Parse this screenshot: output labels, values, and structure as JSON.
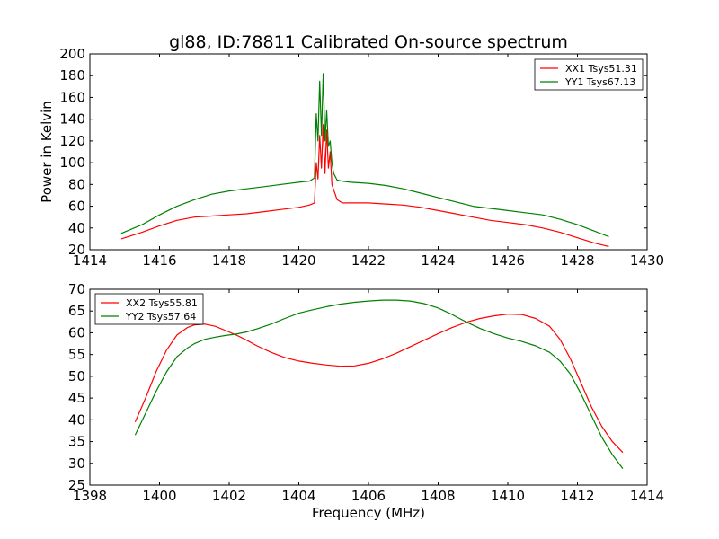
{
  "figure": {
    "title": "gl88, ID:78811 Calibrated On-source spectrum",
    "background": "#ffffff"
  },
  "chart_data": [
    {
      "type": "line",
      "title": "gl88, ID:78811 Calibrated On-source spectrum",
      "xlabel": "",
      "ylabel": "Power in Kelvin",
      "xlim": [
        1414,
        1430
      ],
      "ylim": [
        20,
        200
      ],
      "xticks": [
        1414,
        1416,
        1418,
        1420,
        1422,
        1424,
        1426,
        1428,
        1430
      ],
      "yticks": [
        20,
        40,
        60,
        80,
        100,
        120,
        140,
        160,
        180,
        200
      ],
      "grid": false,
      "legend": "top-right",
      "series": [
        {
          "name": "XX1 Tsys51.31",
          "color": "#ff0000",
          "x": [
            1414.9,
            1415.5,
            1416.0,
            1416.5,
            1417.0,
            1417.5,
            1418.0,
            1418.5,
            1419.0,
            1419.5,
            1420.0,
            1420.3,
            1420.45,
            1420.5,
            1420.55,
            1420.6,
            1420.65,
            1420.7,
            1420.75,
            1420.8,
            1420.85,
            1420.9,
            1420.95,
            1421.0,
            1421.1,
            1421.25,
            1421.5,
            1422.0,
            1422.5,
            1423.0,
            1423.5,
            1424.0,
            1424.5,
            1425.0,
            1425.5,
            1426.0,
            1426.5,
            1427.0,
            1427.5,
            1428.0,
            1428.5,
            1428.9
          ],
          "y": [
            30,
            36,
            42,
            47,
            50,
            51,
            52,
            53,
            55,
            57,
            59,
            61,
            63,
            100,
            85,
            125,
            95,
            135,
            90,
            130,
            95,
            110,
            80,
            75,
            66,
            63,
            63,
            63,
            62,
            61,
            59,
            56,
            53,
            50,
            47,
            45,
            43,
            40,
            36,
            31,
            26,
            23
          ]
        },
        {
          "name": "YY1 Tsys67.13",
          "color": "#008000",
          "x": [
            1414.9,
            1415.5,
            1416.0,
            1416.5,
            1417.0,
            1417.5,
            1418.0,
            1418.5,
            1419.0,
            1419.5,
            1420.0,
            1420.3,
            1420.45,
            1420.5,
            1420.55,
            1420.6,
            1420.65,
            1420.7,
            1420.75,
            1420.8,
            1420.85,
            1420.9,
            1420.95,
            1421.0,
            1421.1,
            1421.25,
            1421.5,
            1422.0,
            1422.5,
            1423.0,
            1423.5,
            1424.0,
            1424.5,
            1425.0,
            1425.5,
            1426.0,
            1426.5,
            1427.0,
            1427.5,
            1428.0,
            1428.5,
            1428.9
          ],
          "y": [
            35,
            43,
            52,
            60,
            66,
            71,
            74,
            76,
            78,
            80,
            82,
            83,
            86,
            145,
            120,
            175,
            125,
            182,
            120,
            148,
            115,
            120,
            100,
            90,
            84,
            83,
            82,
            81,
            79,
            76,
            72,
            68,
            64,
            60,
            58,
            56,
            54,
            52,
            48,
            43,
            37,
            32
          ]
        }
      ]
    },
    {
      "type": "line",
      "title": "",
      "xlabel": "Frequency (MHz)",
      "ylabel": "",
      "xlim": [
        1398,
        1414
      ],
      "ylim": [
        25,
        70
      ],
      "xticks": [
        1398,
        1400,
        1402,
        1404,
        1406,
        1408,
        1410,
        1412,
        1414
      ],
      "yticks": [
        25,
        30,
        35,
        40,
        45,
        50,
        55,
        60,
        65,
        70
      ],
      "grid": false,
      "legend": "top-left",
      "series": [
        {
          "name": "XX2 Tsys55.81",
          "color": "#ff0000",
          "x": [
            1399.3,
            1399.6,
            1399.9,
            1400.2,
            1400.5,
            1400.8,
            1401.0,
            1401.3,
            1401.6,
            1401.9,
            1402.2,
            1402.5,
            1402.8,
            1403.2,
            1403.6,
            1404.0,
            1404.4,
            1404.8,
            1405.2,
            1405.6,
            1406.0,
            1406.4,
            1406.8,
            1407.2,
            1407.6,
            1408.0,
            1408.4,
            1408.8,
            1409.2,
            1409.6,
            1410.0,
            1410.4,
            1410.8,
            1411.2,
            1411.5,
            1411.8,
            1412.1,
            1412.4,
            1412.7,
            1413.0,
            1413.3
          ],
          "y": [
            39.5,
            45,
            51,
            56,
            59.5,
            61.2,
            61.8,
            62,
            61.5,
            60.5,
            59.5,
            58.3,
            57,
            55.5,
            54.3,
            53.5,
            53,
            52.6,
            52.3,
            52.4,
            53,
            54,
            55.3,
            56.8,
            58.3,
            59.8,
            61.2,
            62.4,
            63.3,
            63.9,
            64.3,
            64.2,
            63.3,
            61.5,
            58.5,
            54,
            48.5,
            43,
            38.5,
            35,
            32.5
          ]
        },
        {
          "name": "YY2 Tsys57.64",
          "color": "#008000",
          "x": [
            1399.3,
            1399.6,
            1399.9,
            1400.2,
            1400.5,
            1400.8,
            1401.0,
            1401.3,
            1401.6,
            1401.9,
            1402.2,
            1402.5,
            1402.8,
            1403.2,
            1403.6,
            1404.0,
            1404.4,
            1404.8,
            1405.2,
            1405.6,
            1406.0,
            1406.4,
            1406.8,
            1407.2,
            1407.6,
            1408.0,
            1408.4,
            1408.8,
            1409.2,
            1409.6,
            1410.0,
            1410.4,
            1410.8,
            1411.2,
            1411.5,
            1411.8,
            1412.1,
            1412.4,
            1412.7,
            1413.0,
            1413.3
          ],
          "y": [
            36.5,
            41.5,
            46.5,
            51,
            54.5,
            56.5,
            57.5,
            58.5,
            59,
            59.4,
            59.7,
            60.2,
            60.9,
            62,
            63.3,
            64.5,
            65.3,
            66,
            66.6,
            67,
            67.3,
            67.5,
            67.5,
            67.3,
            66.7,
            65.7,
            64.2,
            62.5,
            61,
            59.8,
            58.8,
            58,
            57,
            55.5,
            53.5,
            50.5,
            46,
            41,
            36,
            32,
            28.8
          ]
        }
      ]
    }
  ]
}
